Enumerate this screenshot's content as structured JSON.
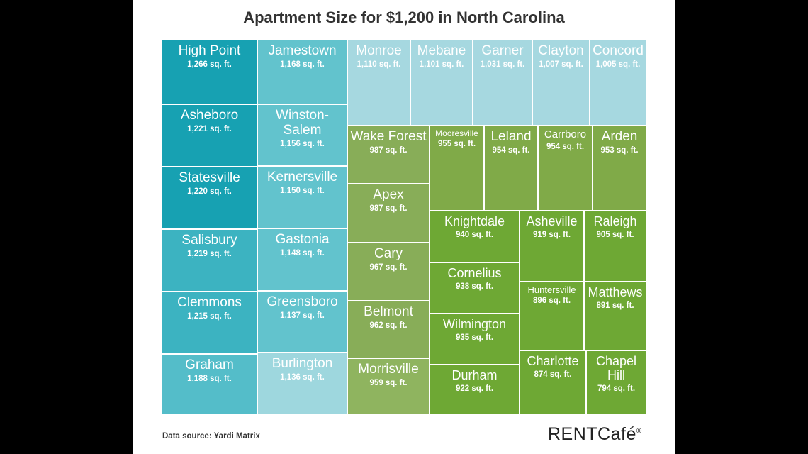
{
  "title": "Apartment Size for $1,200 in North Carolina",
  "source": "Data source: Yardi Matrix",
  "logo": {
    "text": "RENTCafé",
    "mark": "®"
  },
  "chart_data": {
    "type": "treemap",
    "unit": "sq. ft.",
    "items": [
      {
        "name": "High Point",
        "value": 1266,
        "label": "1,266 sq. ft.",
        "color": "#17a1b2"
      },
      {
        "name": "Asheboro",
        "value": 1221,
        "label": "1,221 sq. ft.",
        "color": "#17a1b2"
      },
      {
        "name": "Statesville",
        "value": 1220,
        "label": "1,220 sq. ft.",
        "color": "#17a1b2"
      },
      {
        "name": "Salisbury",
        "value": 1219,
        "label": "1,219 sq. ft.",
        "color": "#3cb3c1"
      },
      {
        "name": "Clemmons",
        "value": 1215,
        "label": "1,215 sq. ft.",
        "color": "#3cb3c1"
      },
      {
        "name": "Graham",
        "value": 1188,
        "label": "1,188 sq. ft.",
        "color": "#54bdc9"
      },
      {
        "name": "Jamestown",
        "value": 1168,
        "label": "1,168 sq. ft.",
        "color": "#62c3cd"
      },
      {
        "name": "Winston-Salem",
        "value": 1156,
        "label": "1,156 sq. ft.",
        "color": "#62c3cd"
      },
      {
        "name": "Kernersville",
        "value": 1150,
        "label": "1,150 sq. ft.",
        "color": "#62c3cd"
      },
      {
        "name": "Gastonia",
        "value": 1148,
        "label": "1,148 sq. ft.",
        "color": "#62c3cd"
      },
      {
        "name": "Greensboro",
        "value": 1137,
        "label": "1,137 sq. ft.",
        "color": "#62c3cd"
      },
      {
        "name": "Burlington",
        "value": 1136,
        "label": "1,136 sq. ft.",
        "color": "#9ed7de"
      },
      {
        "name": "Monroe",
        "value": 1110,
        "label": "1,110 sq. ft.",
        "color": "#a6d8e0"
      },
      {
        "name": "Mebane",
        "value": 1101,
        "label": "1,101 sq. ft.",
        "color": "#a6d8e0"
      },
      {
        "name": "Garner",
        "value": 1031,
        "label": "1,031 sq. ft.",
        "color": "#a6d8e0"
      },
      {
        "name": "Clayton",
        "value": 1007,
        "label": "1,007 sq. ft.",
        "color": "#a6d8e0"
      },
      {
        "name": "Concord",
        "value": 1005,
        "label": "1,005 sq. ft.",
        "color": "#a6d8e0"
      },
      {
        "name": "Wake Forest",
        "value": 987,
        "label": "987 sq. ft.",
        "color": "#88ad58"
      },
      {
        "name": "Apex",
        "value": 987,
        "label": "987 sq. ft.",
        "color": "#88ad58"
      },
      {
        "name": "Cary",
        "value": 967,
        "label": "967 sq. ft.",
        "color": "#88ad58"
      },
      {
        "name": "Belmont",
        "value": 962,
        "label": "962 sq. ft.",
        "color": "#88ad58"
      },
      {
        "name": "Morrisville",
        "value": 959,
        "label": "959 sq. ft.",
        "color": "#8fb45f"
      },
      {
        "name": "Mooresville",
        "value": 955,
        "label": "955 sq. ft.",
        "color": "#80aa48"
      },
      {
        "name": "Leland",
        "value": 954,
        "label": "954 sq. ft.",
        "color": "#80aa48"
      },
      {
        "name": "Carrboro",
        "value": 954,
        "label": "954 sq. ft.",
        "color": "#80aa48"
      },
      {
        "name": "Arden",
        "value": 953,
        "label": "953 sq. ft.",
        "color": "#80aa48"
      },
      {
        "name": "Knightdale",
        "value": 940,
        "label": "940 sq. ft.",
        "color": "#6ea834"
      },
      {
        "name": "Asheville",
        "value": 919,
        "label": "919 sq. ft.",
        "color": "#6ea834"
      },
      {
        "name": "Raleigh",
        "value": 905,
        "label": "905 sq. ft.",
        "color": "#6ea834"
      },
      {
        "name": "Cornelius",
        "value": 938,
        "label": "938 sq. ft.",
        "color": "#6ea834"
      },
      {
        "name": "Huntersville",
        "value": 896,
        "label": "896 sq. ft.",
        "color": "#6ea834"
      },
      {
        "name": "Matthews",
        "value": 891,
        "label": "891 sq. ft.",
        "color": "#6ea834"
      },
      {
        "name": "Wilmington",
        "value": 935,
        "label": "935 sq. ft.",
        "color": "#6ea834"
      },
      {
        "name": "Durham",
        "value": 922,
        "label": "922 sq. ft.",
        "color": "#6ea834"
      },
      {
        "name": "Charlotte",
        "value": 874,
        "label": "874 sq. ft.",
        "color": "#6ea834"
      },
      {
        "name": "Chapel Hill",
        "value": 794,
        "label": "794 sq. ft.",
        "color": "#6ea834"
      }
    ]
  }
}
